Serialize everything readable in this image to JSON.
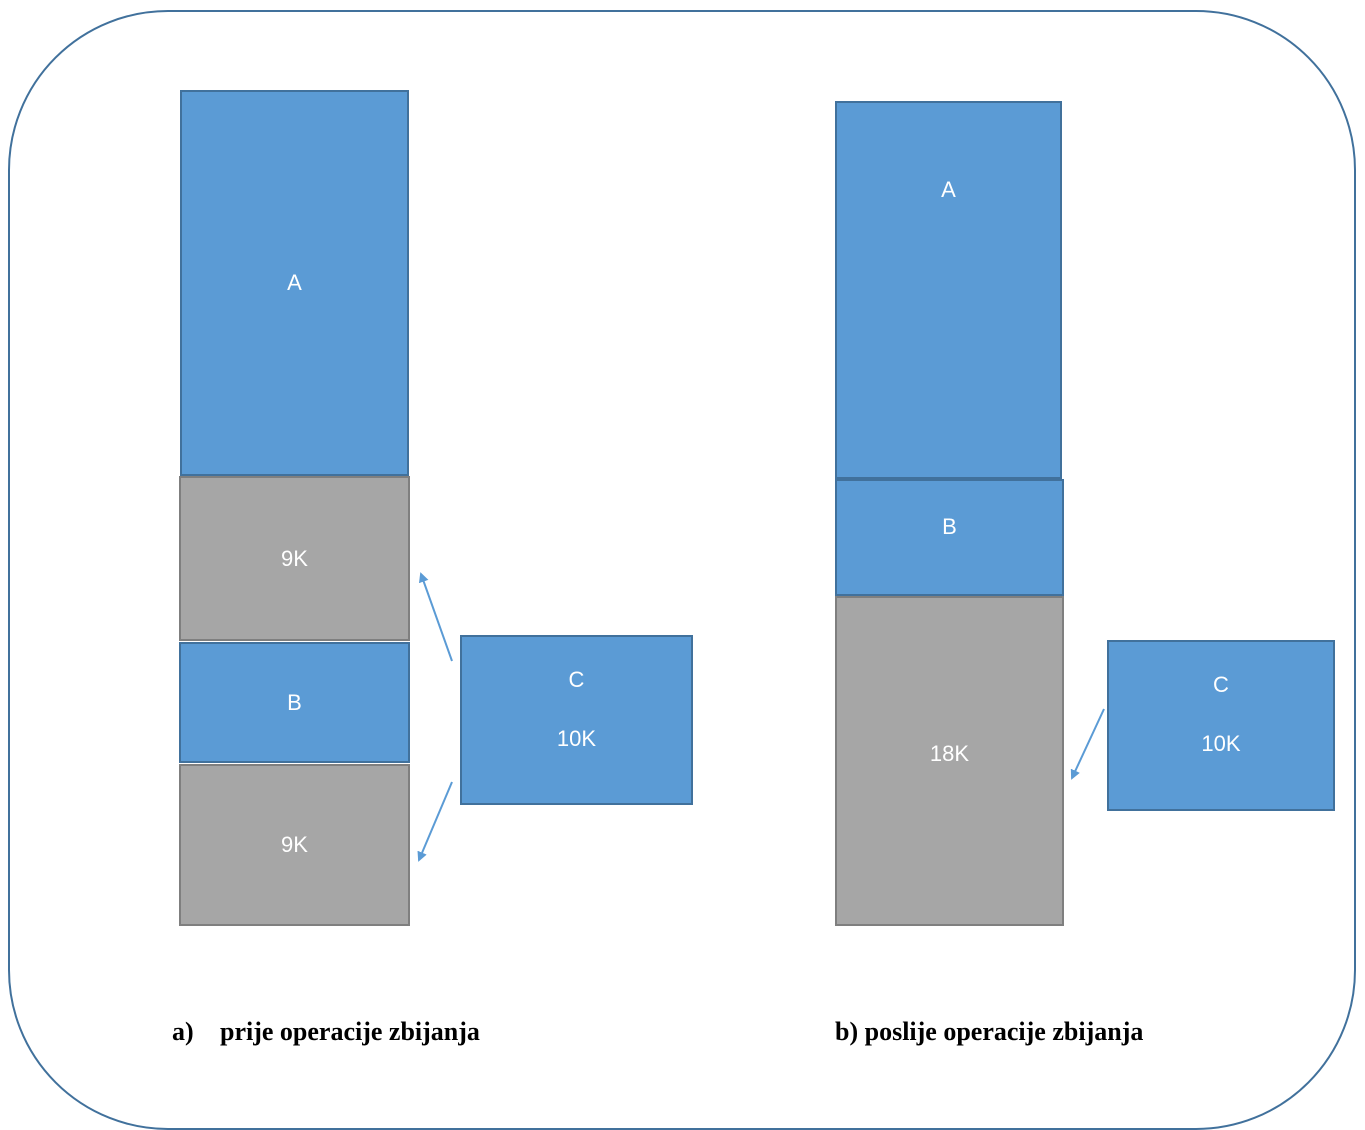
{
  "diagram_a": {
    "blocks": {
      "A": "A",
      "free_top": "9K",
      "B": "B",
      "free_bottom": "9K"
    },
    "process": {
      "name": "C",
      "size": "10K"
    },
    "caption": {
      "label": "a)",
      "text": "prije operacije zbijanja"
    }
  },
  "diagram_b": {
    "blocks": {
      "A": "A",
      "B": "B",
      "free": "18K"
    },
    "process": {
      "name": "C",
      "size": "10K"
    },
    "caption": {
      "label": "b)",
      "text": "poslije operacije zbijanja"
    }
  },
  "colors": {
    "process_block": "#5b9bd5",
    "free_block": "#a6a6a6",
    "outline": "#41719c",
    "arrow": "#5b9bd5"
  }
}
